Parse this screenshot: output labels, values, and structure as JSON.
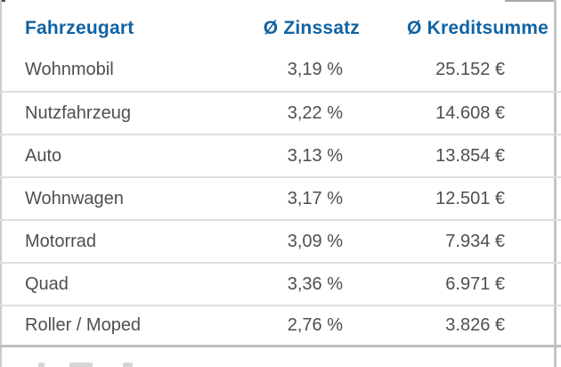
{
  "table": {
    "headers": [
      "Fahrzeugart",
      "Ø Zinssatz",
      "Ø Kreditsumme"
    ],
    "rows": [
      {
        "fahrzeugart": "Wohnmobil",
        "zinssatz": "3,19 %",
        "kreditsumme": "25.152 €"
      },
      {
        "fahrzeugart": "Nutzfahrzeug",
        "zinssatz": "3,22 %",
        "kreditsumme": "14.608 €"
      },
      {
        "fahrzeugart": "Auto",
        "zinssatz": "3,13 %",
        "kreditsumme": "13.854 €"
      },
      {
        "fahrzeugart": "Wohnwagen",
        "zinssatz": "3,17 %",
        "kreditsumme": "12.501 €"
      },
      {
        "fahrzeugart": "Motorrad",
        "zinssatz": "3,09 %",
        "kreditsumme": "7.934 €"
      },
      {
        "fahrzeugart": "Quad",
        "zinssatz": "3,36 %",
        "kreditsumme": "6.971 €"
      },
      {
        "fahrzeugart": "Roller / Moped",
        "zinssatz": "2,76 %",
        "kreditsumme": "3.826 €"
      }
    ]
  },
  "chart_data": {
    "type": "table",
    "title": "",
    "columns": [
      "Fahrzeugart",
      "Ø Zinssatz",
      "Ø Kreditsumme"
    ],
    "rows": [
      [
        "Wohnmobil",
        "3,19 %",
        "25.152 €"
      ],
      [
        "Nutzfahrzeug",
        "3,22 %",
        "14.608 €"
      ],
      [
        "Auto",
        "3,13 %",
        "13.854 €"
      ],
      [
        "Wohnwagen",
        "3,17 %",
        "12.501 €"
      ],
      [
        "Motorrad",
        "3,09 %",
        "7.934 €"
      ],
      [
        "Quad",
        "3,36 %",
        "6.971 €"
      ],
      [
        "Roller / Moped",
        "2,76 %",
        "3.826 €"
      ]
    ],
    "zinssatz_percent": [
      3.19,
      3.22,
      3.13,
      3.17,
      3.09,
      3.36,
      2.76
    ],
    "kreditsumme_eur": [
      25152,
      14608,
      13854,
      12501,
      7934,
      6971,
      3826
    ]
  },
  "colors": {
    "header_text": "#1163a3",
    "row_text": "#4f4f4f",
    "row_divider": "#dedede",
    "bottom_divider": "#bfbfbf",
    "side_border": "#c9c9c9"
  }
}
